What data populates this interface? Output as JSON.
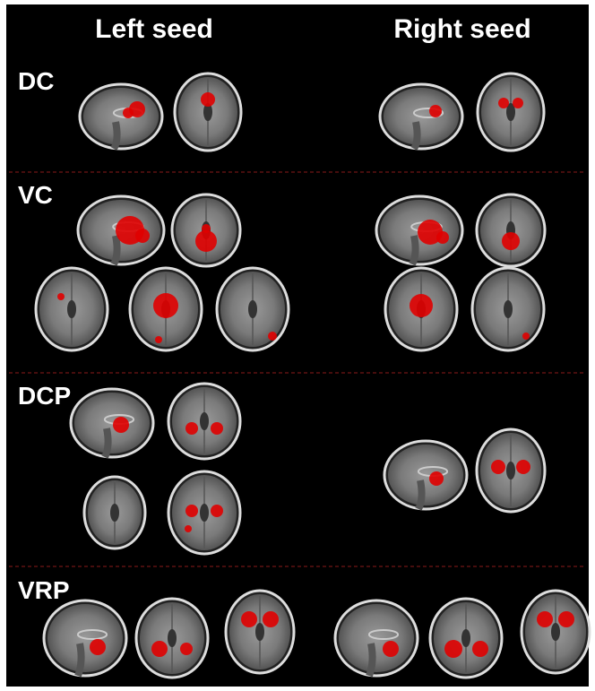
{
  "columns": [
    "Left seed",
    "Right seed"
  ],
  "rows": [
    "DC",
    "VC",
    "DCP",
    "VRP"
  ]
}
